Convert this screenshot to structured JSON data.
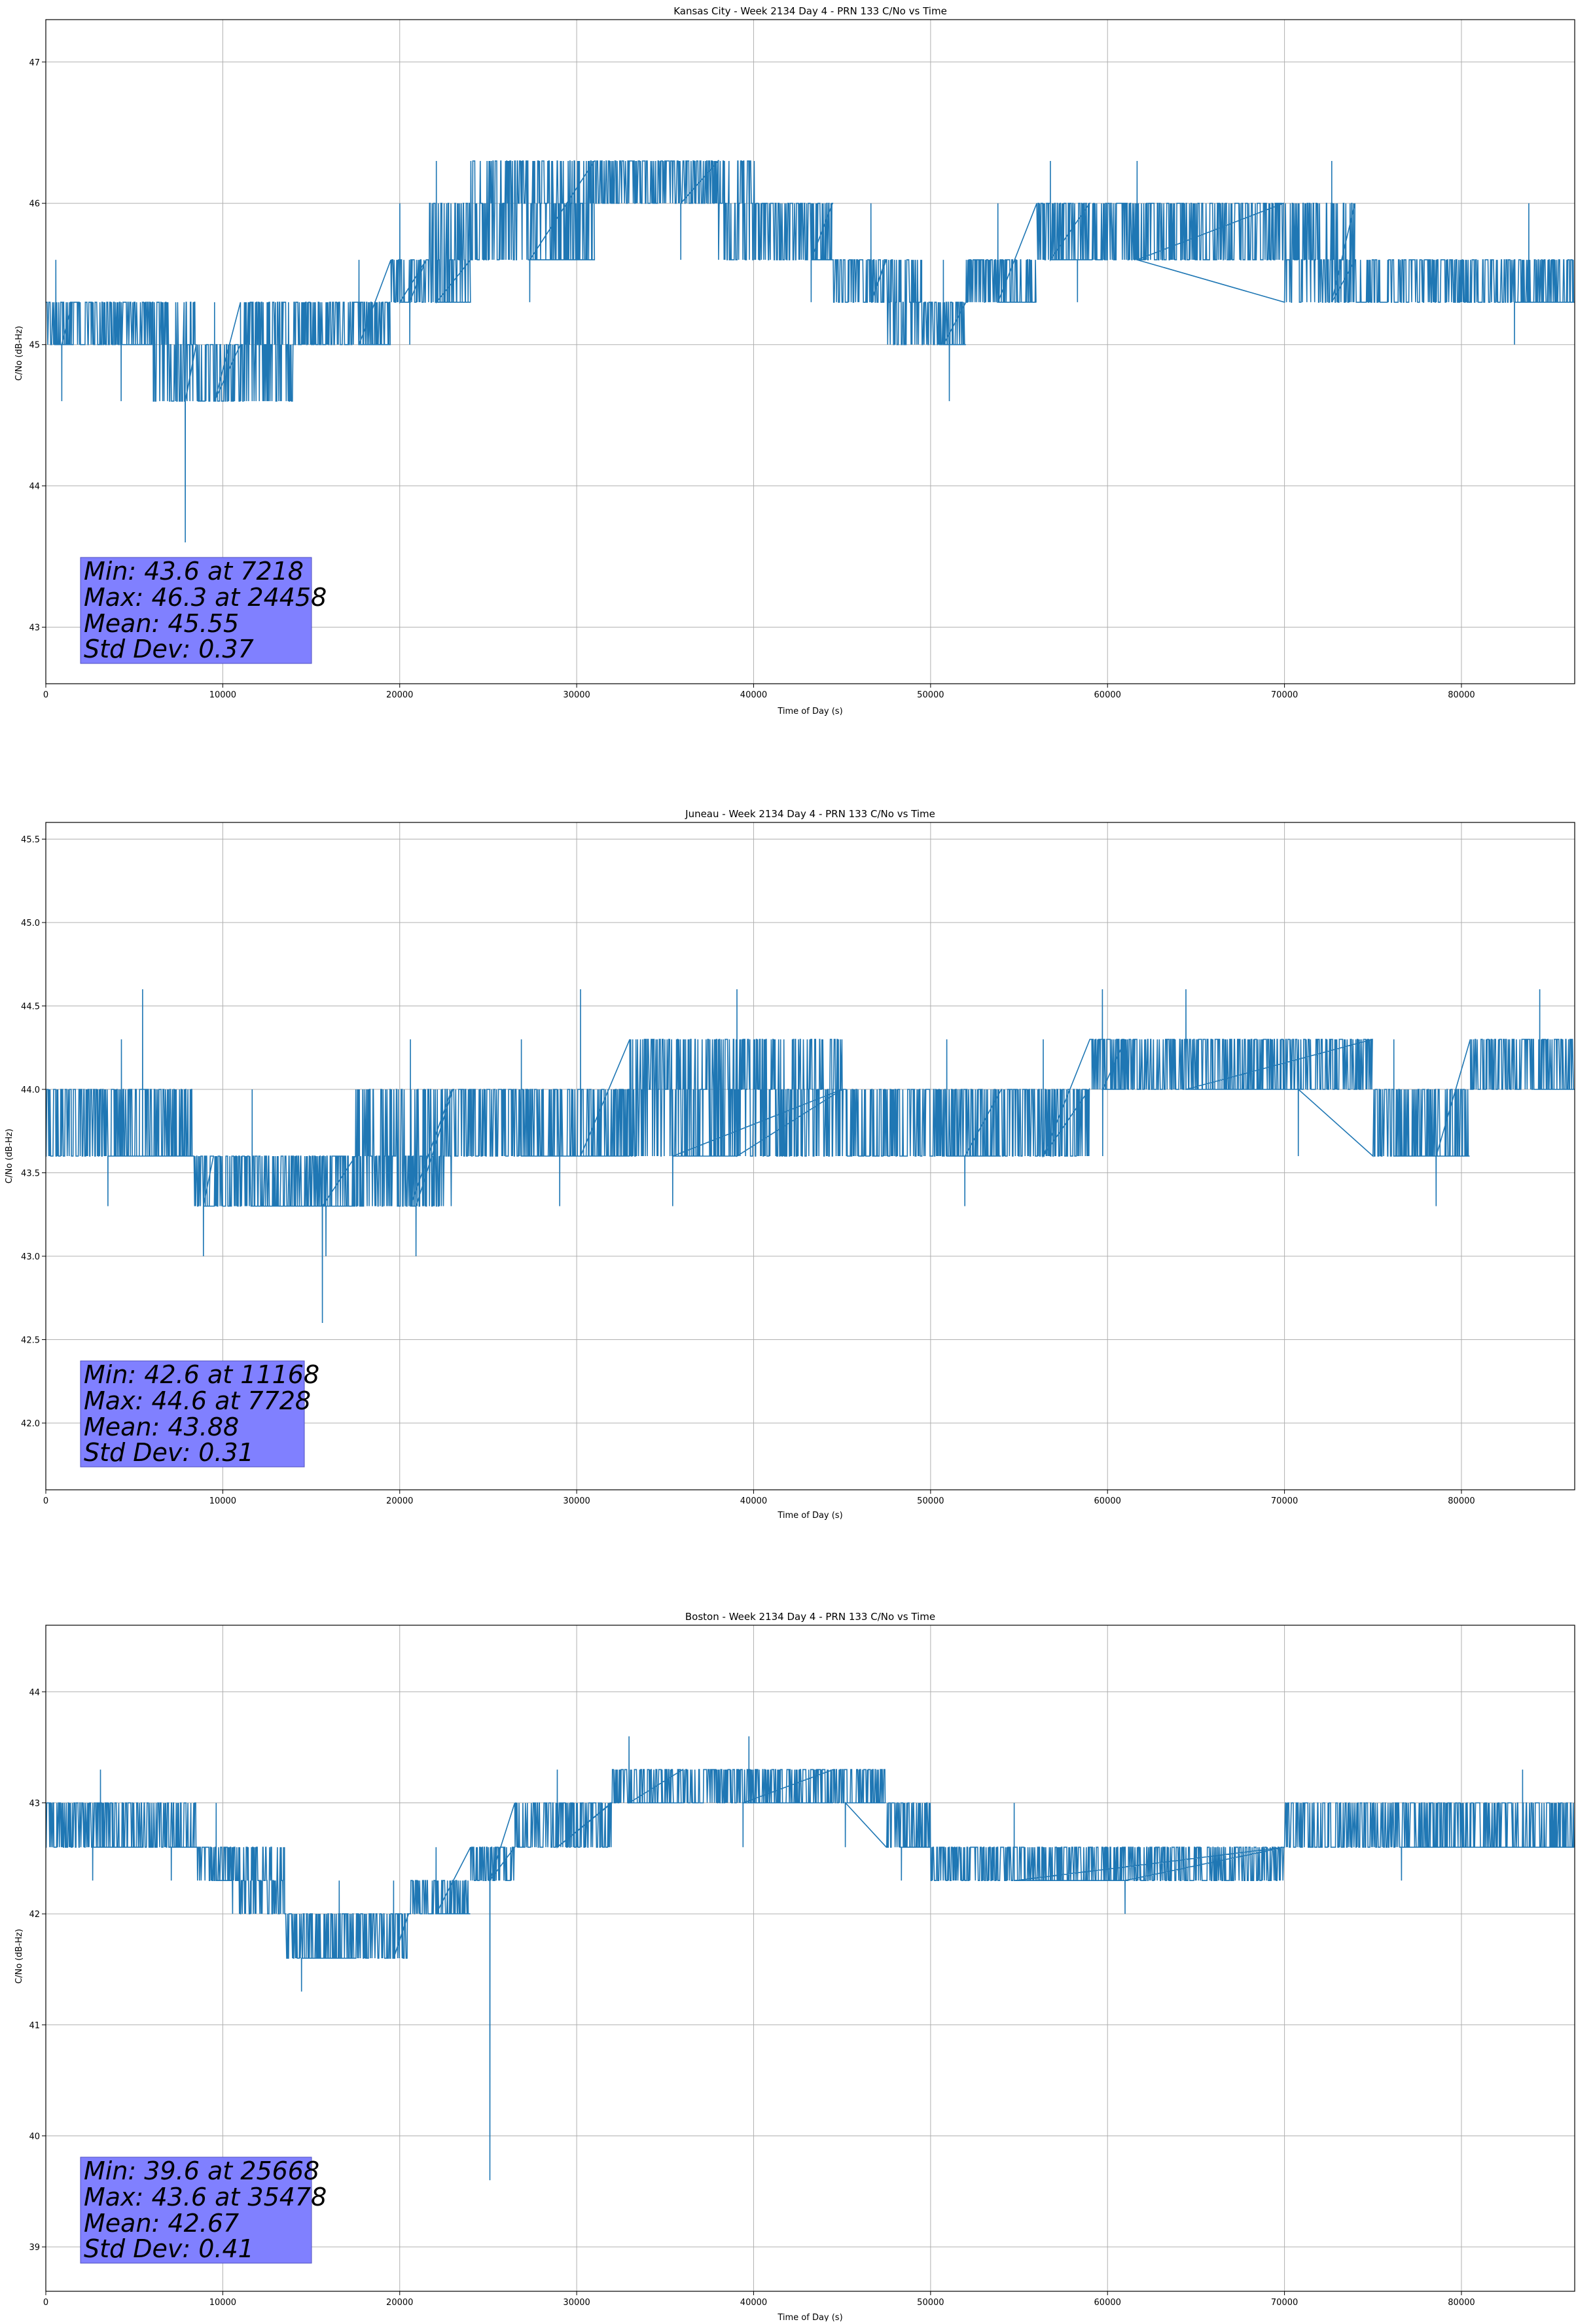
{
  "colors": {
    "line": "#1f77b4",
    "grid": "#b0b0b0",
    "stats_box": "#8080ff",
    "axis": "#000000"
  },
  "chart_data": [
    {
      "type": "line",
      "title": "Kansas City - Week 2134 Day 4 - PRN 133 C/No vs Time",
      "xlabel": "Time of Day (s)",
      "ylabel": "C/No (dB-Hz)",
      "xlim": [
        0,
        86400
      ],
      "ylim": [
        42.6,
        47.3
      ],
      "xticks": [
        0,
        10000,
        20000,
        30000,
        40000,
        50000,
        60000,
        70000,
        80000
      ],
      "yticks": [
        43,
        44,
        45,
        46,
        47
      ],
      "grid": true,
      "stats": {
        "min": "Min: 43.6 at 7218",
        "max": "Max: 46.3 at 24458",
        "mean": "Mean: 45.55",
        "std": "Std Dev: 0.37"
      },
      "series": [
        {
          "segments": [
            {
              "x": [
                0,
                1500
              ],
              "levels": [
                45.0,
                45.3
              ],
              "spikes": [
                44.6,
                45.6
              ]
            },
            {
              "x": [
                1500,
                6000
              ],
              "levels": [
                45.0,
                45.3
              ],
              "spikes": [
                44.6
              ]
            },
            {
              "x": [
                6000,
                8500
              ],
              "levels": [
                44.6,
                45.0,
                45.3
              ],
              "spikes": [
                43.6
              ]
            },
            {
              "x": [
                8500,
                11000
              ],
              "levels": [
                44.6,
                45.0
              ],
              "spikes": [
                45.3
              ]
            },
            {
              "x": [
                11000,
                14000
              ],
              "levels": [
                44.6,
                45.0,
                45.3
              ],
              "spikes": []
            },
            {
              "x": [
                14000,
                19500
              ],
              "levels": [
                45.0,
                45.3
              ],
              "spikes": [
                45.6
              ]
            },
            {
              "x": [
                19500,
                21500
              ],
              "levels": [
                45.3,
                45.6
              ],
              "spikes": [
                45.0,
                46.0
              ]
            },
            {
              "x": [
                21500,
                24000
              ],
              "levels": [
                45.3,
                45.6,
                46.0
              ],
              "spikes": [
                46.3
              ]
            },
            {
              "x": [
                24000,
                31000
              ],
              "levels": [
                45.6,
                46.0,
                46.3
              ],
              "spikes": [
                45.3
              ]
            },
            {
              "x": [
                31000,
                38000
              ],
              "levels": [
                46.0,
                46.3
              ],
              "spikes": [
                45.6
              ]
            },
            {
              "x": [
                38000,
                40500
              ],
              "levels": [
                45.6,
                46.0,
                46.3
              ],
              "spikes": []
            },
            {
              "x": [
                40500,
                44500
              ],
              "levels": [
                45.6,
                46.0
              ],
              "spikes": [
                45.3
              ]
            },
            {
              "x": [
                44500,
                47500
              ],
              "levels": [
                45.3,
                45.6
              ],
              "spikes": [
                46.0
              ]
            },
            {
              "x": [
                47500,
                49500
              ],
              "levels": [
                45.0,
                45.3,
                45.6
              ],
              "spikes": []
            },
            {
              "x": [
                49500,
                52000
              ],
              "levels": [
                45.0,
                45.3
              ],
              "spikes": [
                44.6,
                45.6
              ]
            },
            {
              "x": [
                52000,
                56000
              ],
              "levels": [
                45.3,
                45.6
              ],
              "spikes": [
                46.0
              ]
            },
            {
              "x": [
                56000,
                59000
              ],
              "levels": [
                45.6,
                46.0
              ],
              "spikes": [
                46.3,
                45.3
              ]
            },
            {
              "x": [
                59000,
                70000
              ],
              "levels": [
                45.6,
                46.0
              ],
              "spikes": [
                46.3
              ]
            },
            {
              "x": [
                70000,
                74000
              ],
              "levels": [
                45.3,
                45.6,
                46.0
              ],
              "spikes": [
                46.3
              ]
            },
            {
              "x": [
                74000,
                86400
              ],
              "levels": [
                45.3,
                45.6
              ],
              "spikes": [
                46.0,
                45.0
              ]
            }
          ]
        }
      ]
    },
    {
      "type": "line",
      "title": "Juneau - Week 2134 Day 4 - PRN 133 C/No vs Time",
      "xlabel": "Time of Day (s)",
      "ylabel": "C/No (dB-Hz)",
      "xlim": [
        0,
        86400
      ],
      "ylim": [
        41.6,
        45.6
      ],
      "xticks": [
        0,
        10000,
        20000,
        30000,
        40000,
        50000,
        60000,
        70000,
        80000
      ],
      "yticks": [
        42.0,
        42.5,
        43.0,
        43.5,
        44.0,
        44.5,
        45.0,
        45.5
      ],
      "grid": true,
      "stats": {
        "min": "Min: 42.6 at 11168",
        "max": "Max: 44.6 at 7728",
        "mean": "Mean: 43.88",
        "std": "Std Dev: 0.31"
      },
      "series": [
        {
          "segments": [
            {
              "x": [
                0,
                8300
              ],
              "levels": [
                43.6,
                44.0
              ],
              "spikes": [
                44.3,
                43.3,
                44.6
              ]
            },
            {
              "x": [
                8300,
                9500
              ],
              "levels": [
                43.3,
                43.6
              ],
              "spikes": [
                43.0
              ]
            },
            {
              "x": [
                9500,
                17500
              ],
              "levels": [
                43.3,
                43.6
              ],
              "spikes": [
                43.0,
                44.0,
                42.6
              ]
            },
            {
              "x": [
                17500,
                23000
              ],
              "levels": [
                43.3,
                43.6,
                44.0
              ],
              "spikes": [
                44.3,
                43.0
              ]
            },
            {
              "x": [
                23000,
                33000
              ],
              "levels": [
                43.6,
                44.0
              ],
              "spikes": [
                43.3,
                44.3,
                44.6
              ]
            },
            {
              "x": [
                33000,
                45000
              ],
              "levels": [
                43.6,
                44.0,
                44.3
              ],
              "spikes": [
                44.6,
                43.3
              ]
            },
            {
              "x": [
                45000,
                54000
              ],
              "levels": [
                43.6,
                44.0
              ],
              "spikes": [
                44.3,
                43.3
              ]
            },
            {
              "x": [
                54000,
                59000
              ],
              "levels": [
                43.6,
                44.0
              ],
              "spikes": [
                44.3
              ]
            },
            {
              "x": [
                59000,
                61000
              ],
              "levels": [
                44.0,
                44.3
              ],
              "spikes": [
                44.6,
                43.6
              ]
            },
            {
              "x": [
                61000,
                75000
              ],
              "levels": [
                44.0,
                44.3
              ],
              "spikes": [
                44.6,
                43.6
              ]
            },
            {
              "x": [
                75000,
                80500
              ],
              "levels": [
                43.6,
                44.0
              ],
              "spikes": [
                44.3,
                43.3
              ]
            },
            {
              "x": [
                80500,
                86400
              ],
              "levels": [
                44.0,
                44.3
              ],
              "spikes": [
                44.6
              ]
            }
          ]
        }
      ]
    },
    {
      "type": "line",
      "title": "Boston - Week 2134 Day 4 - PRN 133 C/No vs Time",
      "xlabel": "Time of Day (s)",
      "ylabel": "C/No (dB-Hz)",
      "xlim": [
        0,
        86400
      ],
      "ylim": [
        38.6,
        44.6
      ],
      "xticks": [
        0,
        10000,
        20000,
        30000,
        40000,
        50000,
        60000,
        70000,
        80000
      ],
      "yticks": [
        39,
        40,
        41,
        42,
        43,
        44
      ],
      "grid": true,
      "stats": {
        "min": "Min: 39.6 at 25668",
        "max": "Max: 43.6 at 35478",
        "mean": "Mean: 42.67",
        "std": "Std Dev: 0.41"
      },
      "series": [
        {
          "segments": [
            {
              "x": [
                0,
                5500
              ],
              "levels": [
                42.6,
                43.0
              ],
              "spikes": [
                43.3,
                42.3
              ]
            },
            {
              "x": [
                5500,
                8500
              ],
              "levels": [
                42.6,
                43.0
              ],
              "spikes": [
                42.3
              ]
            },
            {
              "x": [
                8500,
                10500
              ],
              "levels": [
                42.3,
                42.6
              ],
              "spikes": [
                43.0
              ]
            },
            {
              "x": [
                10500,
                13500
              ],
              "levels": [
                42.0,
                42.3,
                42.6
              ],
              "spikes": []
            },
            {
              "x": [
                13500,
                17500
              ],
              "levels": [
                41.6,
                42.0
              ],
              "spikes": [
                41.3,
                42.3
              ]
            },
            {
              "x": [
                17500,
                20500
              ],
              "levels": [
                41.6,
                42.0
              ],
              "spikes": [
                42.3
              ]
            },
            {
              "x": [
                20500,
                24000
              ],
              "levels": [
                42.0,
                42.3
              ],
              "spikes": [
                42.6
              ]
            },
            {
              "x": [
                24000,
                26500
              ],
              "levels": [
                42.3,
                42.6
              ],
              "spikes": [
                39.6
              ]
            },
            {
              "x": [
                26500,
                32000
              ],
              "levels": [
                42.6,
                43.0
              ],
              "spikes": [
                43.3
              ]
            },
            {
              "x": [
                32000,
                36000
              ],
              "levels": [
                43.0,
                43.3
              ],
              "spikes": [
                43.6
              ]
            },
            {
              "x": [
                36000,
                44500
              ],
              "levels": [
                43.0,
                43.3
              ],
              "spikes": [
                43.6,
                42.6
              ]
            },
            {
              "x": [
                44500,
                47500
              ],
              "levels": [
                43.0,
                43.3
              ],
              "spikes": [
                42.6
              ]
            },
            {
              "x": [
                47500,
                50000
              ],
              "levels": [
                42.6,
                43.0
              ],
              "spikes": [
                42.3
              ]
            },
            {
              "x": [
                50000,
                70000
              ],
              "levels": [
                42.3,
                42.6
              ],
              "spikes": [
                42.0,
                43.0
              ]
            },
            {
              "x": [
                70000,
                72000
              ],
              "levels": [
                42.6,
                43.0
              ],
              "spikes": []
            },
            {
              "x": [
                72000,
                86400
              ],
              "levels": [
                42.6,
                43.0
              ],
              "spikes": [
                43.3,
                42.3
              ]
            }
          ]
        }
      ]
    }
  ]
}
